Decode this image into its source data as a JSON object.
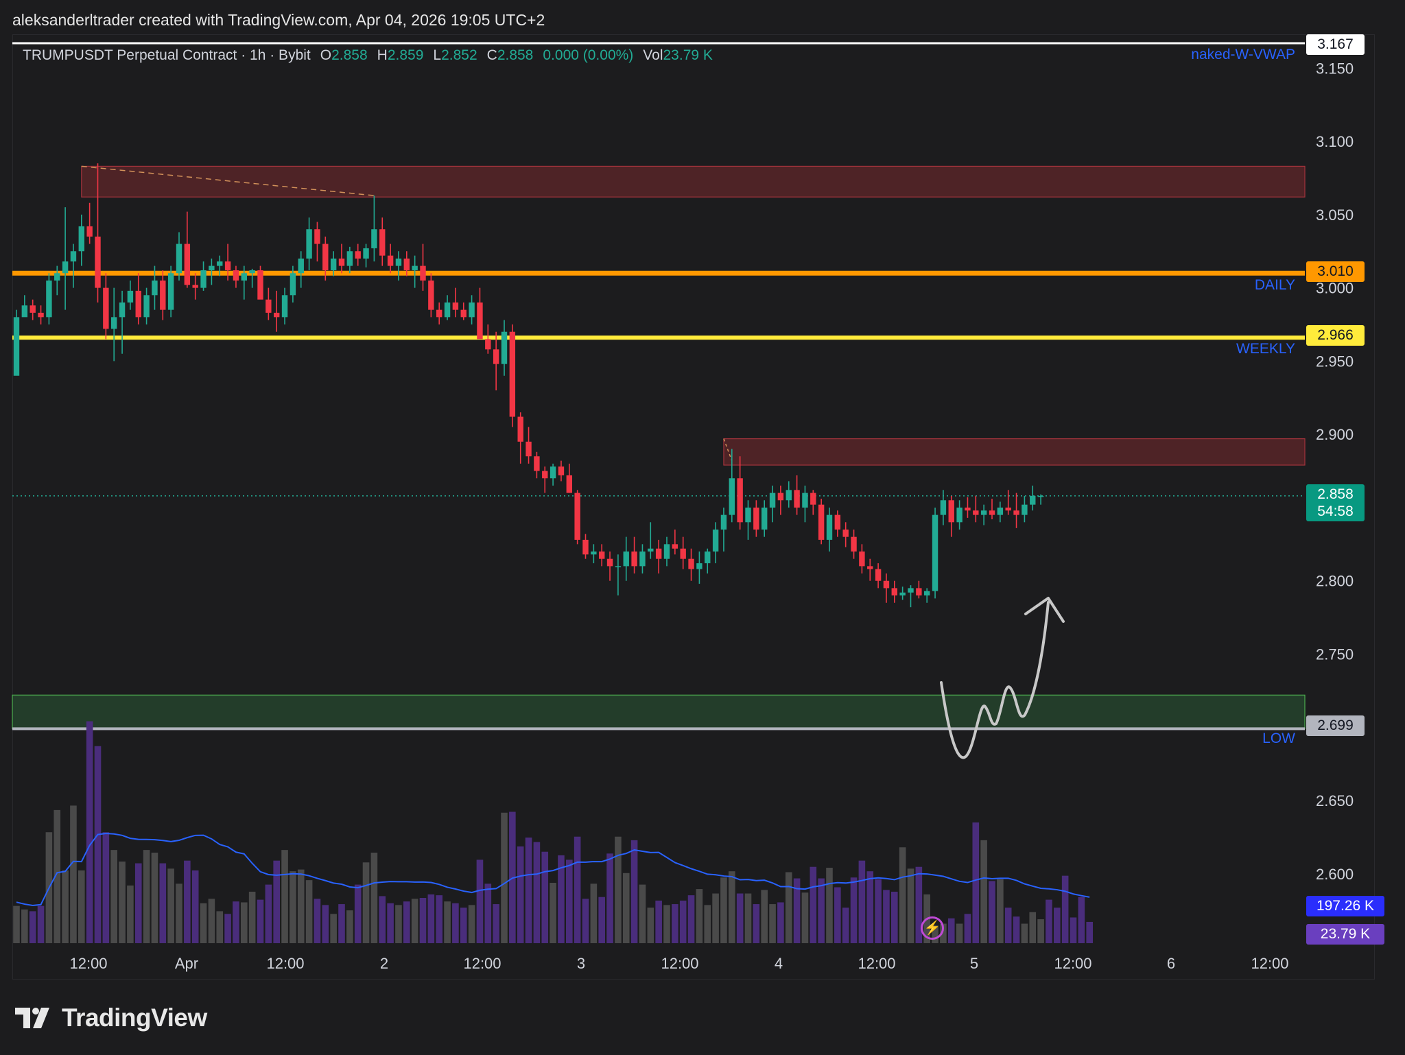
{
  "caption": "aleksanderltrader created with TradingView.com, Apr 04, 2026 19:05 UTC+2",
  "legend": {
    "symbol": "TRUMPUSDT Perpetual Contract · 1h · Bybit",
    "o_label": "O",
    "o_value": "2.858",
    "h_label": "H",
    "h_value": "2.859",
    "l_label": "L",
    "l_value": "2.852",
    "c_label": "C",
    "c_value": "2.858",
    "change": "0.000 (0.00%)",
    "vol_label": "Vol",
    "vol_value": "23.79 K"
  },
  "indicator_labels": {
    "vwap": "naked-W-VWAP",
    "daily": "DAILY",
    "weekly": "WEEKLY",
    "low": "LOW"
  },
  "price_tags": {
    "top": "3.167",
    "daily": "3.010",
    "weekly": "2.966",
    "last": "2.858",
    "countdown": "54:58",
    "low": "2.699"
  },
  "volume_tags": {
    "ma": "197.26 K",
    "vol": "23.79 K"
  },
  "logo_text": "TradingView",
  "colors": {
    "up": "#22ab94",
    "down": "#f23645",
    "daily_line": "#ff9800",
    "weekly_line": "#ffeb3b",
    "supply_zone": "#4e2326",
    "demand_zone": "#233d2a",
    "vol_ma": "#2962ff",
    "vol_purple": "#4a2d7c",
    "vol_gray": "#4a4a4a"
  },
  "chart_data": {
    "type": "candlestick",
    "symbol": "TRUMPUSDT",
    "interval": "1h",
    "y_ticks": [
      "3.150",
      "3.100",
      "3.050",
      "3.000",
      "2.950",
      "2.900",
      "2.800",
      "2.750",
      "2.650",
      "2.600"
    ],
    "x_ticks": [
      "12:00",
      "Apr",
      "12:00",
      "2",
      "12:00",
      "3",
      "12:00",
      "4",
      "12:00",
      "5",
      "12:00",
      "6",
      "12:00"
    ],
    "ylim": [
      2.555,
      3.18
    ],
    "levels": {
      "top_line": 3.167,
      "daily": 3.01,
      "weekly": 2.966,
      "low": 2.699,
      "last": 2.858
    },
    "zones": [
      {
        "kind": "supply",
        "start_index": 8,
        "top": 3.083,
        "bottom": 3.062
      },
      {
        "kind": "supply",
        "start_index": 87,
        "top": 2.897,
        "bottom": 2.879
      },
      {
        "kind": "demand",
        "start_index": 0,
        "top": 2.722,
        "bottom": 2.699
      }
    ],
    "candles": [
      [
        2.94,
        2.985,
        2.945,
        2.98
      ],
      [
        2.98,
        2.995,
        2.982,
        2.988
      ],
      [
        2.988,
        2.992,
        2.978,
        2.983
      ],
      [
        2.983,
        2.988,
        2.975,
        2.98
      ],
      [
        2.98,
        3.01,
        2.975,
        3.005
      ],
      [
        3.005,
        3.015,
        2.995,
        3.01
      ],
      [
        3.01,
        3.055,
        2.985,
        3.018
      ],
      [
        3.018,
        3.03,
        3.0,
        3.025
      ],
      [
        3.025,
        3.05,
        3.015,
        3.042
      ],
      [
        3.042,
        3.058,
        3.03,
        3.035
      ],
      [
        3.035,
        3.085,
        2.99,
        3.0
      ],
      [
        3.0,
        3.01,
        2.965,
        2.972
      ],
      [
        2.972,
        3.0,
        2.95,
        2.98
      ],
      [
        2.98,
        2.998,
        2.955,
        2.99
      ],
      [
        2.99,
        3.005,
        2.985,
        2.998
      ],
      [
        2.998,
        3.01,
        2.975,
        2.98
      ],
      [
        2.98,
        3.0,
        2.975,
        2.995
      ],
      [
        2.995,
        3.015,
        2.985,
        3.005
      ],
      [
        3.005,
        3.012,
        2.978,
        2.985
      ],
      [
        2.985,
        3.015,
        2.98,
        3.01
      ],
      [
        3.01,
        3.038,
        3.005,
        3.03
      ],
      [
        3.03,
        3.052,
        3.0,
        3.002
      ],
      [
        3.002,
        3.01,
        2.992,
        3.0
      ],
      [
        3.0,
        3.018,
        2.998,
        3.012
      ],
      [
        3.012,
        3.02,
        3.002,
        3.015
      ],
      [
        3.015,
        3.022,
        3.008,
        3.018
      ],
      [
        3.018,
        3.03,
        3.005,
        3.012
      ],
      [
        3.012,
        3.015,
        3.0,
        3.005
      ],
      [
        3.005,
        3.015,
        2.992,
        3.01
      ],
      [
        3.01,
        3.013,
        3.0,
        3.012
      ],
      [
        3.012,
        3.015,
        2.995,
        2.992
      ],
      [
        2.992,
        3.0,
        2.978,
        2.983
      ],
      [
        2.983,
        2.998,
        2.97,
        2.98
      ],
      [
        2.98,
        3.0,
        2.975,
        2.995
      ],
      [
        2.995,
        3.015,
        2.99,
        3.01
      ],
      [
        3.01,
        3.025,
        3.0,
        3.02
      ],
      [
        3.02,
        3.048,
        3.012,
        3.04
      ],
      [
        3.04,
        3.045,
        3.018,
        3.03
      ],
      [
        3.03,
        3.035,
        3.005,
        3.012
      ],
      [
        3.012,
        3.025,
        3.008,
        3.02
      ],
      [
        3.02,
        3.03,
        3.01,
        3.015
      ],
      [
        3.015,
        3.028,
        3.01,
        3.025
      ],
      [
        3.025,
        3.03,
        3.015,
        3.02
      ],
      [
        3.02,
        3.03,
        3.014,
        3.027
      ],
      [
        3.027,
        3.063,
        3.018,
        3.04
      ],
      [
        3.04,
        3.048,
        3.015,
        3.022
      ],
      [
        3.022,
        3.03,
        3.01,
        3.015
      ],
      [
        3.015,
        3.025,
        3.005,
        3.02
      ],
      [
        3.02,
        3.025,
        3.008,
        3.012
      ],
      [
        3.012,
        3.022,
        3.0,
        3.015
      ],
      [
        3.015,
        3.03,
        2.998,
        3.005
      ],
      [
        3.005,
        3.01,
        2.98,
        2.985
      ],
      [
        2.985,
        2.99,
        2.975,
        2.98
      ],
      [
        2.98,
        2.995,
        2.978,
        2.99
      ],
      [
        2.99,
        3.0,
        2.98,
        2.985
      ],
      [
        2.985,
        2.99,
        2.978,
        2.98
      ],
      [
        2.98,
        2.995,
        2.975,
        2.99
      ],
      [
        2.99,
        3.0,
        2.97,
        2.965
      ],
      [
        2.965,
        2.975,
        2.955,
        2.958
      ],
      [
        2.958,
        2.97,
        2.93,
        2.948
      ],
      [
        2.948,
        2.978,
        2.94,
        2.97
      ],
      [
        2.97,
        2.975,
        2.905,
        2.912
      ],
      [
        2.912,
        2.915,
        2.88,
        2.895
      ],
      [
        2.895,
        2.905,
        2.88,
        2.885
      ],
      [
        2.885,
        2.888,
        2.87,
        2.875
      ],
      [
        2.875,
        2.878,
        2.86,
        2.87
      ],
      [
        2.87,
        2.88,
        2.865,
        2.878
      ],
      [
        2.878,
        2.882,
        2.868,
        2.872
      ],
      [
        2.872,
        2.88,
        2.86,
        2.86
      ],
      [
        2.86,
        2.862,
        2.825,
        2.828
      ],
      [
        2.828,
        2.832,
        2.815,
        2.818
      ],
      [
        2.818,
        2.825,
        2.812,
        2.82
      ],
      [
        2.82,
        2.825,
        2.81,
        2.815
      ],
      [
        2.815,
        2.82,
        2.8,
        2.81
      ],
      [
        2.81,
        2.818,
        2.79,
        2.81
      ],
      [
        2.81,
        2.83,
        2.8,
        2.82
      ],
      [
        2.82,
        2.83,
        2.805,
        2.81
      ],
      [
        2.81,
        2.825,
        2.805,
        2.82
      ],
      [
        2.82,
        2.84,
        2.815,
        2.822
      ],
      [
        2.822,
        2.828,
        2.805,
        2.815
      ],
      [
        2.815,
        2.83,
        2.81,
        2.825
      ],
      [
        2.825,
        2.835,
        2.818,
        2.822
      ],
      [
        2.822,
        2.83,
        2.808,
        2.815
      ],
      [
        2.815,
        2.822,
        2.8,
        2.808
      ],
      [
        2.808,
        2.82,
        2.798,
        2.812
      ],
      [
        2.812,
        2.822,
        2.805,
        2.82
      ],
      [
        2.82,
        2.84,
        2.812,
        2.835
      ],
      [
        2.835,
        2.85,
        2.82,
        2.845
      ],
      [
        2.845,
        2.89,
        2.84,
        2.87
      ],
      [
        2.87,
        2.885,
        2.835,
        2.84
      ],
      [
        2.84,
        2.855,
        2.828,
        2.85
      ],
      [
        2.85,
        2.855,
        2.83,
        2.835
      ],
      [
        2.835,
        2.855,
        2.83,
        2.85
      ],
      [
        2.85,
        2.865,
        2.84,
        2.86
      ],
      [
        2.86,
        2.865,
        2.845,
        2.855
      ],
      [
        2.855,
        2.868,
        2.85,
        2.862
      ],
      [
        2.862,
        2.872,
        2.845,
        2.85
      ],
      [
        2.85,
        2.865,
        2.84,
        2.86
      ],
      [
        2.86,
        2.862,
        2.845,
        2.852
      ],
      [
        2.852,
        2.856,
        2.825,
        2.828
      ],
      [
        2.828,
        2.85,
        2.82,
        2.845
      ],
      [
        2.845,
        2.848,
        2.83,
        2.835
      ],
      [
        2.835,
        2.84,
        2.823,
        2.83
      ],
      [
        2.83,
        2.835,
        2.815,
        2.82
      ],
      [
        2.82,
        2.825,
        2.805,
        2.81
      ],
      [
        2.81,
        2.815,
        2.8,
        2.808
      ],
      [
        2.808,
        2.812,
        2.795,
        2.8
      ],
      [
        2.8,
        2.805,
        2.785,
        2.795
      ],
      [
        2.795,
        2.8,
        2.785,
        2.79
      ],
      [
        2.79,
        2.796,
        2.787,
        2.792
      ],
      [
        2.792,
        2.797,
        2.782,
        2.795
      ],
      [
        2.795,
        2.8,
        2.788,
        2.79
      ],
      [
        2.79,
        2.795,
        2.785,
        2.793
      ],
      [
        2.793,
        2.85,
        2.788,
        2.845
      ],
      [
        2.845,
        2.862,
        2.838,
        2.855
      ],
      [
        2.855,
        2.858,
        2.83,
        2.84
      ],
      [
        2.84,
        2.855,
        2.835,
        2.85
      ],
      [
        2.85,
        2.857,
        2.843,
        2.848
      ],
      [
        2.848,
        2.858,
        2.84,
        2.845
      ],
      [
        2.845,
        2.852,
        2.838,
        2.848
      ],
      [
        2.848,
        2.856,
        2.842,
        2.845
      ],
      [
        2.845,
        2.854,
        2.84,
        2.85
      ],
      [
        2.85,
        2.862,
        2.845,
        2.848
      ],
      [
        2.848,
        2.86,
        2.836,
        2.845
      ],
      [
        2.845,
        2.858,
        2.84,
        2.852
      ],
      [
        2.852,
        2.865,
        2.848,
        2.858
      ],
      [
        2.858,
        2.859,
        2.852,
        2.858
      ]
    ],
    "volume": [
      42,
      38,
      36,
      42,
      125,
      150,
      82,
      155,
      82,
      250,
      222,
      125,
      105,
      92,
      65,
      90,
      105,
      102,
      90,
      84,
      67,
      93,
      82,
      45,
      50,
      36,
      33,
      47,
      46,
      58,
      49,
      66,
      93,
      105,
      81,
      83,
      71,
      50,
      43,
      33,
      44,
      37,
      66,
      91,
      102,
      53,
      45,
      43,
      47,
      50,
      51,
      55,
      54,
      47,
      45,
      40,
      43,
      94,
      67,
      44,
      147,
      148,
      109,
      119,
      114,
      103,
      68,
      99,
      94,
      120,
      50,
      67,
      52,
      101,
      120,
      79,
      116,
      66,
      40,
      48,
      43,
      44,
      48,
      54,
      61,
      43,
      56,
      74,
      81,
      56,
      56,
      44,
      60,
      44,
      46,
      80,
      73,
      57,
      86,
      73,
      85,
      63,
      40,
      74,
      93,
      81,
      72,
      60,
      58,
      108,
      84,
      86,
      55,
      20,
      22,
      28,
      22,
      33,
      136,
      116,
      70,
      72,
      40,
      30,
      22,
      35,
      27,
      49,
      40,
      76,
      29,
      52,
      24
    ],
    "volume_ma_levels": [
      "197.26 K"
    ]
  }
}
